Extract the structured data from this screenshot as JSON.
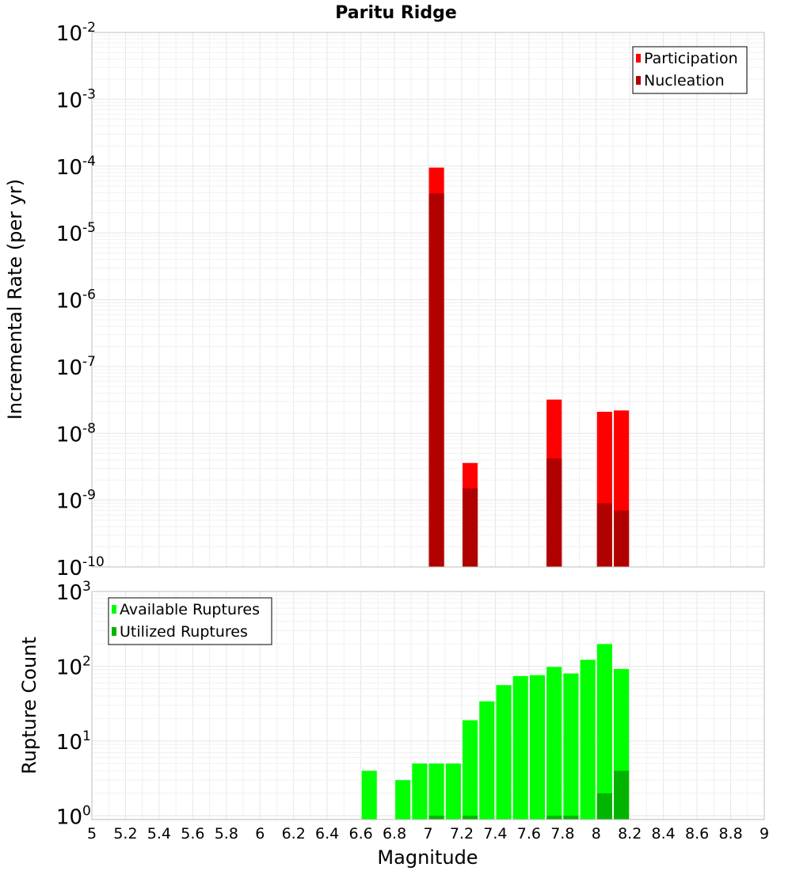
{
  "chart_data": {
    "title": "Paritu Ridge",
    "xlabel": "Magnitude",
    "xlim": [
      5,
      9
    ],
    "x_ticks": [
      "5",
      "5.2",
      "5.4",
      "5.6",
      "5.8",
      "6",
      "6.2",
      "6.4",
      "6.6",
      "6.8",
      "7",
      "7.2",
      "7.4",
      "7.6",
      "7.8",
      "8",
      "8.2",
      "8.4",
      "8.6",
      "8.8",
      "9"
    ],
    "bar_width": 0.1,
    "panels": [
      {
        "type": "bar",
        "yscale": "log",
        "ylabel": "Incremental Rate (per yr)",
        "ylim_exp": [
          -10,
          -2
        ],
        "y_ticks": [
          {
            "base": "10",
            "exp": "-2"
          },
          {
            "base": "10",
            "exp": "-3"
          },
          {
            "base": "10",
            "exp": "-4"
          },
          {
            "base": "10",
            "exp": "-5"
          },
          {
            "base": "10",
            "exp": "-6"
          },
          {
            "base": "10",
            "exp": "-7"
          },
          {
            "base": "10",
            "exp": "-8"
          },
          {
            "base": "10",
            "exp": "-9"
          },
          {
            "base": "10",
            "exp": "-10"
          }
        ],
        "legend_position": "top-right",
        "series": [
          {
            "name": "Participation",
            "color": "#ff0000",
            "x": [
              7.05,
              7.25,
              7.75,
              8.05,
              8.15
            ],
            "values": [
              9.5e-05,
              3.6e-09,
              3.2e-08,
              2.1e-08,
              2.2e-08
            ]
          },
          {
            "name": "Nucleation",
            "color": "#b10000",
            "x": [
              7.05,
              7.25,
              7.75,
              8.05,
              8.15
            ],
            "values": [
              3.9e-05,
              1.5e-09,
              4.2e-09,
              9e-10,
              7e-10
            ]
          }
        ]
      },
      {
        "type": "bar",
        "yscale": "log",
        "ylabel": "Rupture Count",
        "ylim_exp": [
          -0.05,
          3
        ],
        "y_ticks": [
          {
            "base": "10",
            "exp": "3"
          },
          {
            "base": "10",
            "exp": "2"
          },
          {
            "base": "10",
            "exp": "1"
          },
          {
            "base": "10",
            "exp": "0"
          }
        ],
        "legend_position": "top-left",
        "series": [
          {
            "name": "Available Ruptures",
            "color": "#00ff00",
            "x": [
              6.65,
              6.85,
              6.95,
              7.05,
              7.15,
              7.25,
              7.35,
              7.45,
              7.55,
              7.65,
              7.75,
              7.85,
              7.95,
              8.05,
              8.15
            ],
            "values": [
              4,
              3,
              5,
              5,
              5,
              19,
              34,
              56,
              74,
              76,
              98,
              80,
              122,
              198,
              92
            ]
          },
          {
            "name": "Utilized Ruptures",
            "color": "#00b400",
            "x": [
              7.05,
              7.25,
              7.75,
              7.85,
              8.05,
              8.15
            ],
            "values": [
              1,
              1,
              1,
              1,
              2,
              4
            ]
          }
        ]
      }
    ]
  }
}
